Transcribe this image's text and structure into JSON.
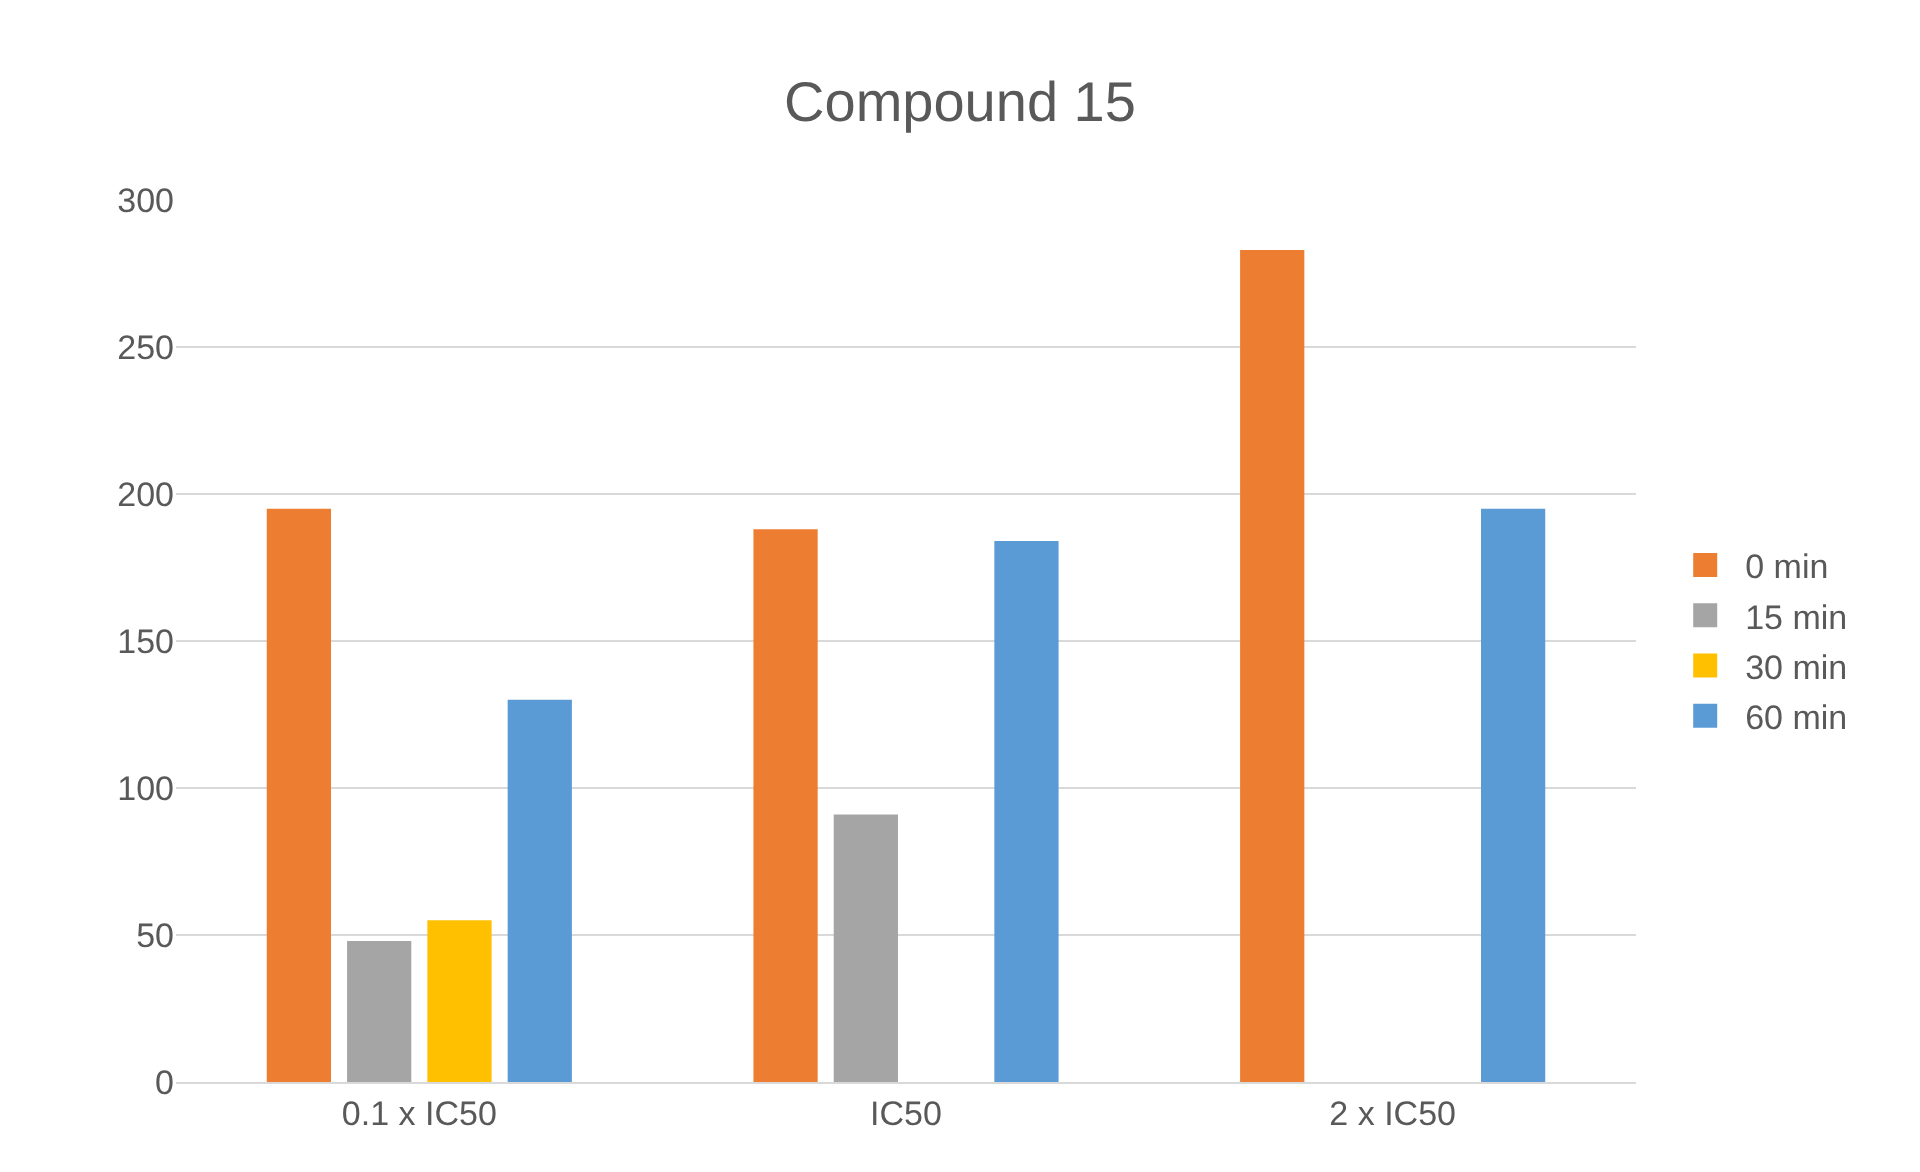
{
  "chart_data": {
    "type": "bar",
    "title": "Compound 15",
    "categories": [
      "0.1 x IC50",
      "IC50",
      "2 x IC50"
    ],
    "series": [
      {
        "name": "0 min",
        "color": "#ed7d31",
        "values": [
          195,
          188,
          283
        ]
      },
      {
        "name": "15 min",
        "color": "#a5a5a5",
        "values": [
          48,
          91,
          null
        ]
      },
      {
        "name": "30 min",
        "color": "#ffc000",
        "values": [
          55,
          null,
          null
        ]
      },
      {
        "name": "60 min",
        "color": "#5b9bd5",
        "values": [
          130,
          184,
          195
        ]
      }
    ],
    "ylim": [
      0,
      300
    ],
    "yticks": [
      0,
      50,
      100,
      150,
      200,
      250,
      300
    ],
    "grid": "y",
    "legend": "right"
  }
}
